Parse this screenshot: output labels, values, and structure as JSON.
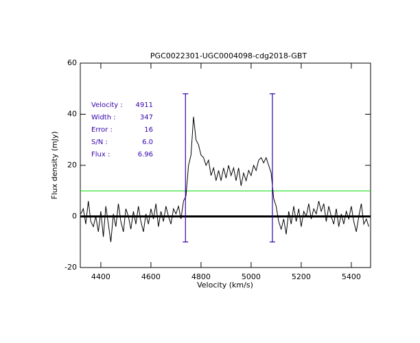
{
  "chart_data": {
    "type": "line",
    "title": "PGC0022301-UGC0004098-cdg2018-GBT",
    "xlabel": "Velocity (km/s)",
    "ylabel": "Flux density (mJy)",
    "xlim": [
      4318,
      5477
    ],
    "ylim": [
      -20,
      60
    ],
    "xticks": [
      4400,
      4600,
      4800,
      5000,
      5200,
      5400
    ],
    "yticks": [
      -20,
      0,
      20,
      40,
      60
    ],
    "color": "#000000",
    "x": [
      4320,
      4330,
      4340,
      4350,
      4360,
      4370,
      4380,
      4390,
      4400,
      4410,
      4420,
      4430,
      4440,
      4450,
      4460,
      4470,
      4480,
      4490,
      4500,
      4510,
      4520,
      4530,
      4540,
      4550,
      4560,
      4570,
      4580,
      4590,
      4600,
      4610,
      4620,
      4630,
      4640,
      4650,
      4660,
      4670,
      4680,
      4690,
      4700,
      4710,
      4720,
      4730,
      4740,
      4750,
      4760,
      4770,
      4780,
      4790,
      4800,
      4810,
      4820,
      4830,
      4840,
      4850,
      4860,
      4870,
      4880,
      4890,
      4900,
      4910,
      4920,
      4930,
      4940,
      4950,
      4960,
      4970,
      4980,
      4990,
      5000,
      5010,
      5020,
      5030,
      5040,
      5050,
      5060,
      5070,
      5080,
      5090,
      5100,
      5110,
      5120,
      5130,
      5140,
      5150,
      5160,
      5170,
      5180,
      5190,
      5200,
      5210,
      5220,
      5230,
      5240,
      5250,
      5260,
      5270,
      5280,
      5290,
      5300,
      5310,
      5320,
      5330,
      5340,
      5350,
      5360,
      5370,
      5380,
      5390,
      5400,
      5410,
      5420,
      5430,
      5440,
      5450,
      5460,
      5470
    ],
    "values": [
      1,
      3,
      -3,
      6,
      -2,
      -4,
      0,
      -6,
      2,
      -8,
      4,
      -3,
      -10,
      1,
      -4,
      5,
      -2,
      -6,
      3,
      0,
      -5,
      2,
      -3,
      4,
      -2,
      -6,
      1,
      -3,
      3,
      -1,
      5,
      -4,
      2,
      -2,
      4,
      0,
      -3,
      3,
      1,
      4,
      -1,
      6,
      8,
      20,
      24,
      39,
      30,
      28,
      24,
      23,
      20,
      22,
      16,
      19,
      14,
      18,
      14,
      19,
      15,
      20,
      16,
      19,
      14,
      19,
      12,
      17,
      14,
      18,
      16,
      20,
      18,
      22,
      23,
      21,
      23,
      20,
      17,
      7,
      4,
      -2,
      -5,
      -1,
      -7,
      2,
      -3,
      4,
      -2,
      3,
      -4,
      2,
      0,
      5,
      -1,
      3,
      1,
      6,
      2,
      5,
      -2,
      4,
      0,
      -3,
      3,
      -4,
      1,
      -3,
      2,
      -1,
      4,
      -2,
      -6,
      0,
      5,
      -3,
      -1,
      -4
    ],
    "markers": [
      {
        "x": 4738,
        "ylim": [
          -10,
          48
        ],
        "color": "#3300aa"
      },
      {
        "x": 5085,
        "ylim": [
          -10,
          48
        ],
        "color": "#3300aa"
      }
    ],
    "hlines": [
      {
        "value": 10,
        "color": "#00dd00"
      },
      {
        "value": 0,
        "color": "#000000"
      }
    ],
    "stats": [
      {
        "label": "Velocity :",
        "value": 4911
      },
      {
        "label": "Width :",
        "value": 347
      },
      {
        "label": "Error :",
        "value": 16
      },
      {
        "label": "S/N :",
        "value": "6.0"
      },
      {
        "label": "Flux :",
        "value": 6.96
      }
    ]
  }
}
